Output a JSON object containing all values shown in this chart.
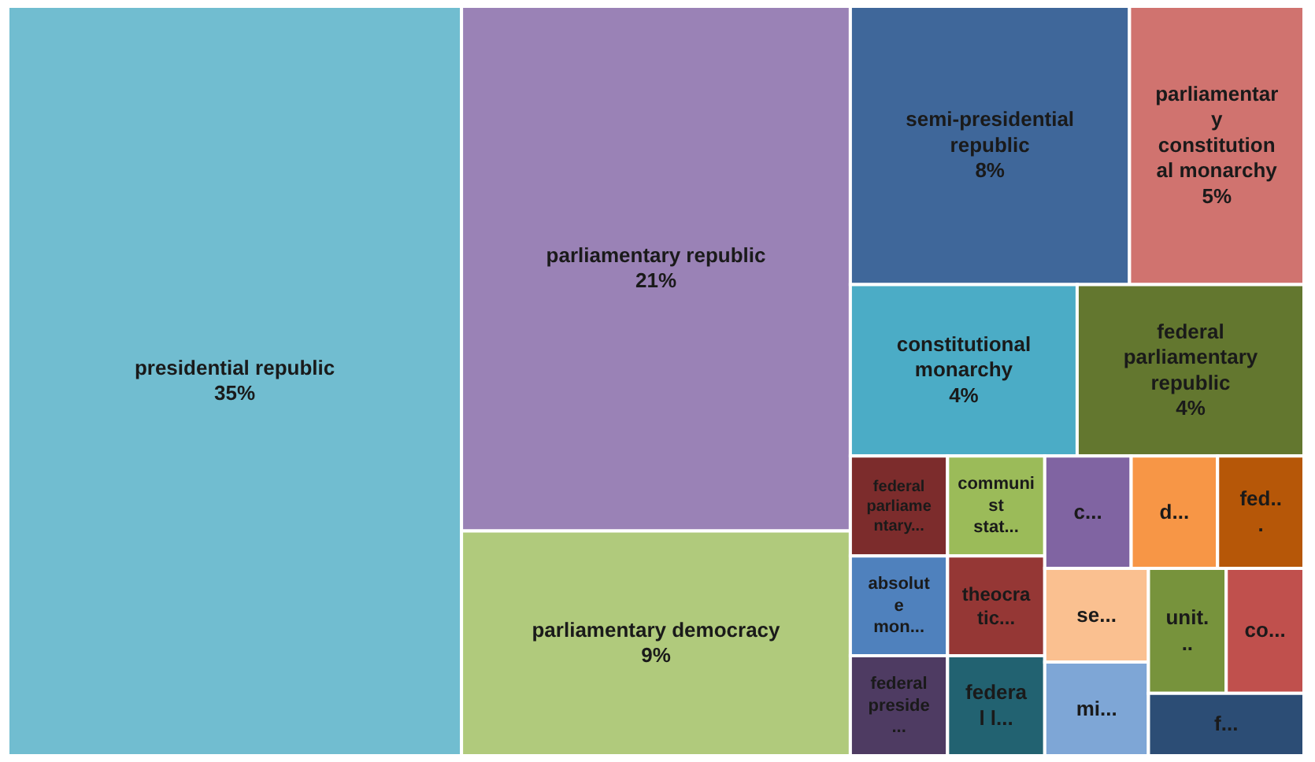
{
  "chart_data": {
    "type": "other",
    "categories": [
      "presidential republic",
      "parliamentary republic",
      "parliamentary democracy",
      "semi-presidential republic",
      "parliamentary constitutional monarchy",
      "constitutional monarchy",
      "federal parliamentary republic",
      "federal parliamentary...",
      "absolute mon...",
      "federal preside...",
      "communist stat...",
      "theocratic...",
      "federal l...",
      "c...",
      "d...",
      "fed...",
      "se...",
      "mi...",
      "unit...",
      "co...",
      "f..."
    ],
    "values": [
      35,
      21,
      9,
      8,
      5,
      4,
      4,
      null,
      null,
      null,
      null,
      null,
      null,
      null,
      null,
      null,
      null,
      null,
      null,
      null,
      null
    ],
    "value_labels": [
      "35%",
      "21%",
      "9%",
      "8%",
      "5%",
      "4%",
      "4%",
      null,
      null,
      null,
      null,
      null,
      null,
      null,
      null,
      null,
      null,
      null,
      null,
      null,
      null
    ],
    "colors": [
      "#71bdd0",
      "#9a82b6",
      "#b0ca7c",
      "#3f679a",
      "#d0736f",
      "#4bacc6",
      "#63772f",
      "#7c2c2c",
      "#4f81bd",
      "#4e3b62",
      "#9bbb59",
      "#953735",
      "#226271",
      "#8064a2",
      "#f79646",
      "#b65708",
      "#fac090",
      "#7ea6d6",
      "#77933c",
      "#c0504d",
      "#2c4d75"
    ]
  }
}
